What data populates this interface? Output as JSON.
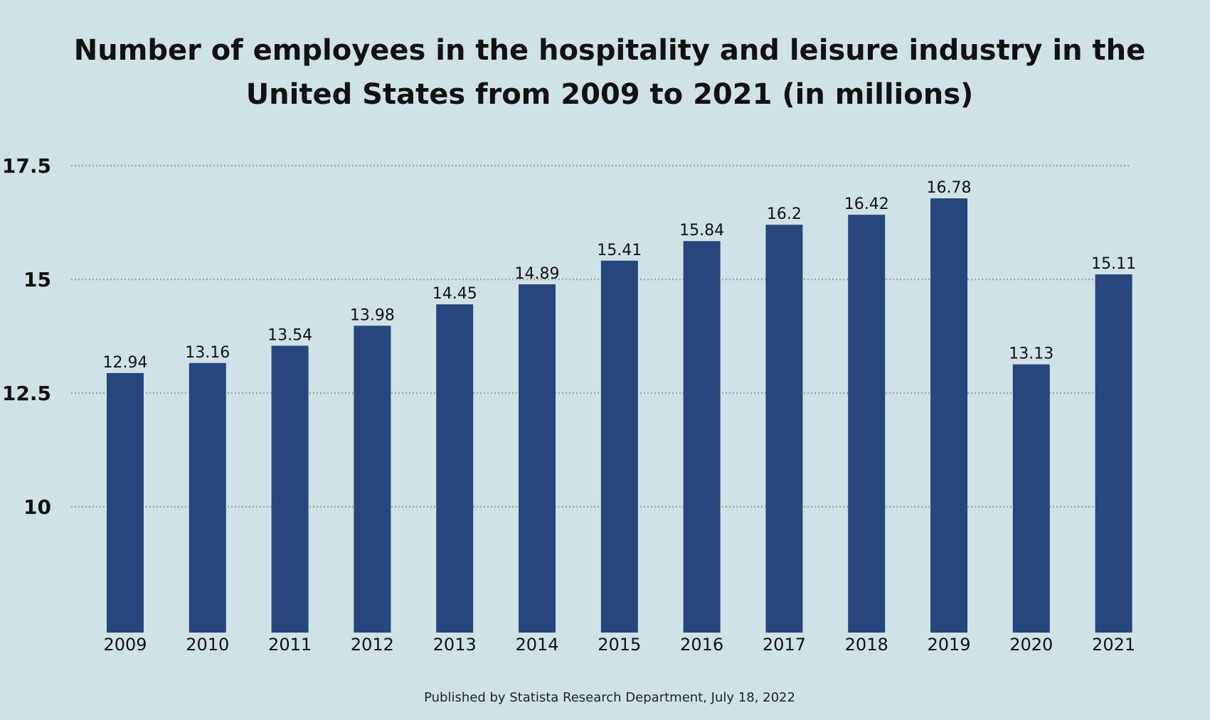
{
  "chart_data": {
    "type": "bar",
    "title_lines": [
      "Number of employees in the hospitality and leisure industry in the",
      "United States from 2009 to 2021 (in millions)"
    ],
    "categories": [
      "2009",
      "2010",
      "2011",
      "2012",
      "2013",
      "2014",
      "2015",
      "2016",
      "2017",
      "2018",
      "2019",
      "2020",
      "2021"
    ],
    "values": [
      12.94,
      13.16,
      13.54,
      13.98,
      14.45,
      14.89,
      15.41,
      15.84,
      16.2,
      16.42,
      16.78,
      13.13,
      15.11
    ],
    "value_labels": [
      "12.94",
      "13.16",
      "13.54",
      "13.98",
      "14.45",
      "14.89",
      "15.41",
      "15.84",
      "16.2",
      "16.42",
      "16.78",
      "13.13",
      "15.11"
    ],
    "y_ticks": [
      10,
      12.5,
      15,
      17.5
    ],
    "y_tick_labels": [
      "10",
      "12.5",
      "15",
      "17.5"
    ],
    "ylim": [
      7.5,
      17.5
    ],
    "xlabel": "",
    "ylabel": "",
    "grid": true,
    "legend": "none",
    "colors": {
      "bar": "#26467d",
      "background": "#cfe3e6",
      "grid": "#9aa5a8",
      "text": "#111111"
    }
  },
  "footer": "Published by Statista Research Department, July 18, 2022"
}
